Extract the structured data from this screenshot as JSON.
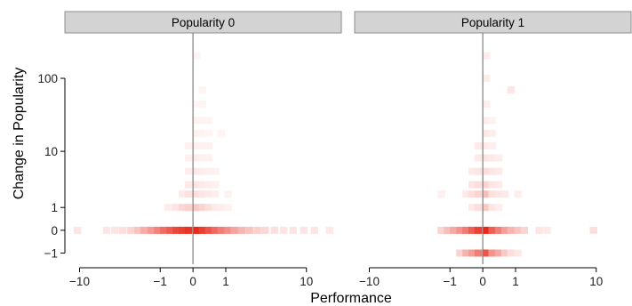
{
  "chart_data": {
    "type": "heatmap",
    "xlabel": "Performance",
    "ylabel": "Change in Popularity",
    "x_ticks": [
      {
        "value": -10,
        "label": "−10"
      },
      {
        "value": -1,
        "label": "−1"
      },
      {
        "value": 0,
        "label": "0"
      },
      {
        "value": 1,
        "label": "1"
      },
      {
        "value": 10,
        "label": "10"
      }
    ],
    "y_ticks": [
      {
        "value": 100,
        "label": "100"
      },
      {
        "value": 10,
        "label": "10"
      },
      {
        "value": 1,
        "label": "1"
      },
      {
        "value": 0,
        "label": "0"
      },
      {
        "value": -1,
        "label": "−1"
      }
    ],
    "x_scale": "signed-log",
    "y_scale": "signed-log",
    "xlim": [
      -14,
      22
    ],
    "ylim": [
      -1.8,
      400
    ],
    "color_low": "#ffffff",
    "color_high": "#e8281a",
    "reference_line_x": 0,
    "panels": [
      {
        "title": "Popularity 0",
        "cells": [
          [
            -10.5,
            0,
            0.12
          ],
          [
            -5.2,
            0,
            0.12
          ],
          [
            -4.2,
            0,
            0.12
          ],
          [
            -3.4,
            0,
            0.15
          ],
          [
            -2.7,
            0,
            0.2
          ],
          [
            -2.2,
            0,
            0.28
          ],
          [
            -1.8,
            0,
            0.38
          ],
          [
            -1.4,
            0,
            0.48
          ],
          [
            -1.1,
            0,
            0.58
          ],
          [
            -0.85,
            0,
            0.68
          ],
          [
            -0.62,
            0,
            0.76
          ],
          [
            -0.42,
            0,
            0.85
          ],
          [
            -0.25,
            0,
            0.9
          ],
          [
            -0.1,
            0,
            0.95
          ],
          [
            0.08,
            0,
            1.0
          ],
          [
            0.22,
            0,
            0.9
          ],
          [
            0.4,
            0,
            0.8
          ],
          [
            0.6,
            0,
            0.7
          ],
          [
            0.82,
            0,
            0.6
          ],
          [
            1.1,
            0,
            0.52
          ],
          [
            1.4,
            0,
            0.42
          ],
          [
            1.8,
            0,
            0.34
          ],
          [
            2.3,
            0,
            0.28
          ],
          [
            2.9,
            0,
            0.22
          ],
          [
            3.6,
            0,
            0.18
          ],
          [
            4.6,
            0,
            0.15
          ],
          [
            5.8,
            0,
            0.12
          ],
          [
            7.3,
            0,
            0.12
          ],
          [
            9.4,
            0,
            0.12
          ],
          [
            12.0,
            0,
            0.12
          ],
          [
            17.0,
            0,
            0.1
          ],
          [
            -0.7,
            1,
            0.08
          ],
          [
            -0.45,
            1,
            0.12
          ],
          [
            -0.25,
            1,
            0.18
          ],
          [
            -0.1,
            1,
            0.22
          ],
          [
            0.08,
            1,
            0.25
          ],
          [
            0.22,
            1,
            0.2
          ],
          [
            0.4,
            1,
            0.15
          ],
          [
            0.6,
            1,
            0.1
          ],
          [
            0.82,
            1,
            0.08
          ],
          [
            1.1,
            1,
            0.06
          ],
          [
            -0.25,
            2,
            0.1
          ],
          [
            -0.1,
            2,
            0.14
          ],
          [
            0.08,
            2,
            0.15
          ],
          [
            0.22,
            2,
            0.12
          ],
          [
            0.4,
            2,
            0.1
          ],
          [
            0.6,
            2,
            0.08
          ],
          [
            1.1,
            2,
            0.06
          ],
          [
            -0.1,
            3,
            0.1
          ],
          [
            0.08,
            3,
            0.12
          ],
          [
            0.22,
            3,
            0.1
          ],
          [
            0.4,
            3,
            0.08
          ],
          [
            0.6,
            3,
            0.07
          ],
          [
            -0.1,
            5,
            0.08
          ],
          [
            0.08,
            5,
            0.1
          ],
          [
            0.22,
            5,
            0.09
          ],
          [
            0.4,
            5,
            0.07
          ],
          [
            0.6,
            5,
            0.06
          ],
          [
            -0.1,
            8,
            0.07
          ],
          [
            0.08,
            8,
            0.08
          ],
          [
            0.22,
            8,
            0.07
          ],
          [
            0.4,
            8,
            0.06
          ],
          [
            -0.1,
            12,
            0.06
          ],
          [
            0.08,
            12,
            0.07
          ],
          [
            0.22,
            12,
            0.06
          ],
          [
            0.4,
            12,
            0.06
          ],
          [
            0.08,
            18,
            0.06
          ],
          [
            0.22,
            18,
            0.06
          ],
          [
            0.4,
            18,
            0.05
          ],
          [
            0.82,
            18,
            0.05
          ],
          [
            0.08,
            27,
            0.06
          ],
          [
            0.22,
            27,
            0.05
          ],
          [
            0.4,
            27,
            0.05
          ],
          [
            0.08,
            45,
            0.05
          ],
          [
            0.22,
            45,
            0.05
          ],
          [
            0.22,
            70,
            0.05
          ],
          [
            0.08,
            200,
            0.05
          ]
        ]
      },
      {
        "title": "Popularity 1",
        "cells": [
          [
            -1.4,
            0,
            0.2
          ],
          [
            -1.1,
            0,
            0.3
          ],
          [
            -0.85,
            0,
            0.4
          ],
          [
            -0.62,
            0,
            0.5
          ],
          [
            -0.42,
            0,
            0.62
          ],
          [
            -0.25,
            0,
            0.75
          ],
          [
            -0.1,
            0,
            0.88
          ],
          [
            0.08,
            0,
            1.0
          ],
          [
            0.22,
            0,
            0.75
          ],
          [
            0.4,
            0,
            0.6
          ],
          [
            0.6,
            0,
            0.45
          ],
          [
            0.82,
            0,
            0.35
          ],
          [
            1.1,
            0,
            0.28
          ],
          [
            1.4,
            0,
            0.2
          ],
          [
            2.3,
            0,
            0.12
          ],
          [
            2.9,
            0,
            0.1
          ],
          [
            9.4,
            0,
            0.15
          ],
          [
            -0.62,
            -1,
            0.2
          ],
          [
            -0.42,
            -1,
            0.35
          ],
          [
            -0.25,
            -1,
            0.45
          ],
          [
            -0.1,
            -1,
            0.6
          ],
          [
            0.08,
            -1,
            0.8
          ],
          [
            0.22,
            -1,
            0.5
          ],
          [
            0.4,
            -1,
            0.4
          ],
          [
            0.6,
            -1,
            0.25
          ],
          [
            0.82,
            -1,
            0.15
          ],
          [
            1.1,
            -1,
            0.1
          ],
          [
            -0.25,
            1,
            0.1
          ],
          [
            -0.1,
            1,
            0.15
          ],
          [
            0.08,
            1,
            0.25
          ],
          [
            0.22,
            1,
            0.12
          ],
          [
            0.4,
            1,
            0.08
          ],
          [
            -0.42,
            2,
            0.1
          ],
          [
            -0.25,
            2,
            0.15
          ],
          [
            -0.1,
            2,
            0.2
          ],
          [
            0.08,
            2,
            0.3
          ],
          [
            0.22,
            2,
            0.15
          ],
          [
            0.4,
            2,
            0.12
          ],
          [
            0.6,
            2,
            0.1
          ],
          [
            1.1,
            2,
            0.08
          ],
          [
            -1.4,
            2,
            0.07
          ],
          [
            -0.25,
            3,
            0.12
          ],
          [
            -0.1,
            3,
            0.15
          ],
          [
            0.08,
            3,
            0.2
          ],
          [
            0.22,
            3,
            0.12
          ],
          [
            0.4,
            3,
            0.1
          ],
          [
            -0.25,
            5,
            0.1
          ],
          [
            -0.1,
            5,
            0.12
          ],
          [
            0.08,
            5,
            0.15
          ],
          [
            0.22,
            5,
            0.12
          ],
          [
            0.4,
            5,
            0.1
          ],
          [
            -0.1,
            8,
            0.1
          ],
          [
            0.08,
            8,
            0.12
          ],
          [
            0.22,
            8,
            0.1
          ],
          [
            0.4,
            8,
            0.08
          ],
          [
            -0.1,
            12,
            0.1
          ],
          [
            0.08,
            12,
            0.1
          ],
          [
            0.22,
            12,
            0.08
          ],
          [
            0.08,
            18,
            0.1
          ],
          [
            0.22,
            18,
            0.08
          ],
          [
            0.08,
            27,
            0.08
          ],
          [
            0.22,
            27,
            0.06
          ],
          [
            0.08,
            45,
            0.08
          ],
          [
            0.08,
            100,
            0.08
          ],
          [
            0.82,
            70,
            0.12
          ],
          [
            0.08,
            200,
            0.08
          ]
        ]
      }
    ]
  }
}
